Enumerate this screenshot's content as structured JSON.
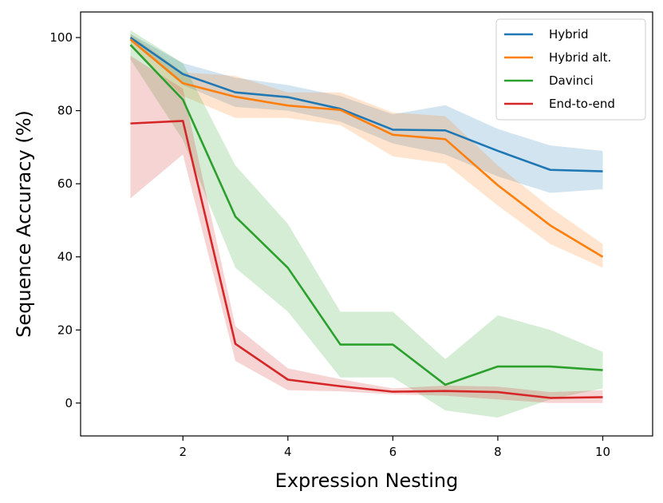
{
  "chart_data": {
    "type": "line",
    "title": "",
    "xlabel": "Expression Nesting",
    "ylabel": "Sequence Accuracy (%)",
    "xlim": [
      0.05,
      10.95
    ],
    "ylim": [
      -9,
      107
    ],
    "xticks": [
      2,
      4,
      6,
      8,
      10
    ],
    "yticks": [
      0,
      20,
      40,
      60,
      80,
      100
    ],
    "grid": false,
    "legend_position": "top-right",
    "x": [
      1,
      2,
      3,
      4,
      5,
      6,
      7,
      8,
      9,
      10
    ],
    "series": [
      {
        "name": "Hybrid",
        "color": "#1f77b4",
        "values": [
          100,
          90,
          85,
          83.7,
          80.5,
          74.8,
          74.6,
          69,
          63.8,
          63.4
        ],
        "lower": [
          99,
          87,
          81,
          80,
          77,
          71,
          68,
          62,
          57.5,
          58.5
        ],
        "upper": [
          101,
          93,
          89,
          87,
          84,
          79,
          81.5,
          75,
          70.5,
          69
        ]
      },
      {
        "name": "Hybrid alt.",
        "color": "#ff7f0e",
        "values": [
          99.5,
          87.5,
          83.8,
          81.4,
          80.2,
          73.4,
          72.2,
          59.6,
          48.6,
          40
        ],
        "lower": [
          98,
          84,
          78,
          78,
          76,
          67.5,
          65.5,
          54,
          43.5,
          37
        ],
        "upper": [
          101,
          90.5,
          89.5,
          85,
          85,
          79.5,
          78.5,
          65,
          53.5,
          43.5
        ]
      },
      {
        "name": "Davinci",
        "color": "#2ca02c",
        "values": [
          98,
          83,
          51,
          37,
          16,
          16,
          5,
          10,
          10,
          9
        ],
        "lower": [
          94,
          72,
          37,
          25,
          7,
          7,
          -2,
          -4,
          1,
          4
        ],
        "upper": [
          102,
          93,
          65,
          49,
          25,
          25,
          12,
          24,
          20,
          14
        ]
      },
      {
        "name": "End-to-end",
        "color": "#d62728",
        "values": [
          76.5,
          77.2,
          16.2,
          6.4,
          4.6,
          3.1,
          3.3,
          3,
          1.4,
          1.6
        ],
        "lower": [
          56,
          68,
          11.5,
          3.5,
          3.2,
          2.4,
          2,
          1,
          0,
          0
        ],
        "upper": [
          95,
          86,
          21,
          9.5,
          6.5,
          4,
          4.8,
          4.5,
          3,
          3.5
        ]
      }
    ]
  }
}
